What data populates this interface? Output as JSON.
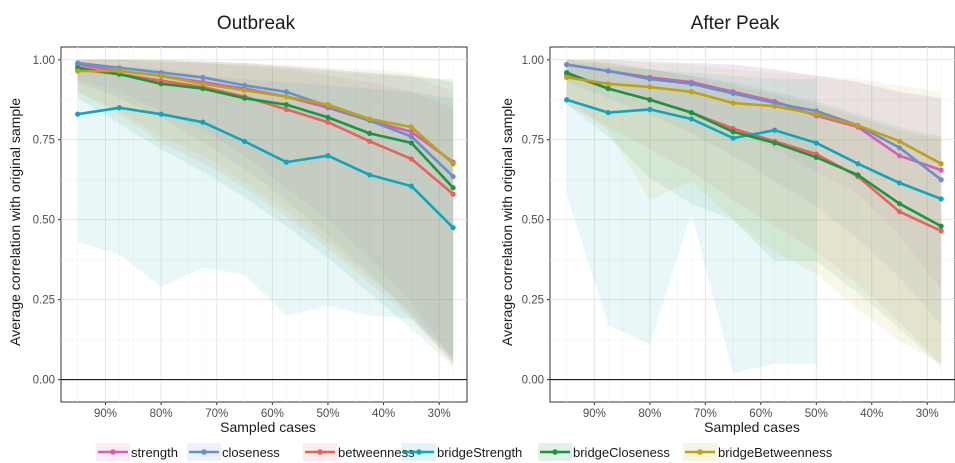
{
  "chart_data": [
    {
      "type": "line",
      "title": "Outbreak",
      "xlabel": "Sampled cases",
      "ylabel": "Average correlation with original sample",
      "x_tick_labels": [
        "90%",
        "80%",
        "70%",
        "60%",
        "50%",
        "40%",
        "30%"
      ],
      "x_tick_values": [
        90,
        80,
        70,
        60,
        50,
        40,
        30
      ],
      "x": [
        95,
        87.5,
        80,
        72.5,
        65,
        57.5,
        50,
        42.5,
        35,
        27.5
      ],
      "xlim": [
        25,
        98
      ],
      "x_reversed": true,
      "y_ticks": [
        0.0,
        0.25,
        0.5,
        0.75,
        1.0
      ],
      "y_tick_labels": [
        "0.00",
        "0.25",
        "0.50",
        "0.75",
        "1.00"
      ],
      "ylim": [
        -0.07,
        1.04
      ],
      "reference_line_y": 0,
      "grid": true,
      "series": [
        {
          "name": "strength",
          "color": "#D35FB7",
          "values": [
            0.985,
            0.965,
            0.95,
            0.93,
            0.91,
            0.885,
            0.85,
            0.81,
            0.775,
            0.68
          ],
          "lower": [
            0.94,
            0.9,
            0.84,
            0.78,
            0.7,
            0.6,
            0.5,
            0.38,
            0.24,
            0.06
          ],
          "upper": [
            1.0,
            1.0,
            1.0,
            0.995,
            0.99,
            0.98,
            0.97,
            0.96,
            0.95,
            0.9
          ]
        },
        {
          "name": "closeness",
          "color": "#6A8FCC",
          "values": [
            0.99,
            0.975,
            0.96,
            0.945,
            0.92,
            0.9,
            0.855,
            0.81,
            0.76,
            0.635
          ],
          "lower": [
            0.93,
            0.88,
            0.82,
            0.74,
            0.66,
            0.56,
            0.45,
            0.33,
            0.2,
            0.05
          ],
          "upper": [
            1.0,
            1.0,
            1.0,
            0.995,
            0.99,
            0.98,
            0.97,
            0.96,
            0.95,
            0.93
          ]
        },
        {
          "name": "betweenness",
          "color": "#E8615A",
          "values": [
            0.97,
            0.955,
            0.935,
            0.915,
            0.885,
            0.845,
            0.805,
            0.745,
            0.69,
            0.58
          ],
          "lower": [
            0.9,
            0.83,
            0.74,
            0.68,
            0.6,
            0.51,
            0.41,
            0.3,
            0.19,
            0.05
          ],
          "upper": [
            1.0,
            1.0,
            0.995,
            0.99,
            0.98,
            0.97,
            0.95,
            0.93,
            0.9,
            0.85
          ]
        },
        {
          "name": "bridgeStrength",
          "color": "#10A5BE",
          "values": [
            0.83,
            0.85,
            0.83,
            0.805,
            0.745,
            0.68,
            0.7,
            0.64,
            0.605,
            0.475
          ],
          "lower": [
            0.43,
            0.39,
            0.29,
            0.35,
            0.33,
            0.2,
            0.23,
            0.2,
            0.19,
            0.07
          ],
          "upper": [
            0.99,
            0.98,
            0.97,
            0.95,
            0.94,
            0.93,
            0.92,
            0.91,
            0.9,
            0.88
          ]
        },
        {
          "name": "bridgeCloseness",
          "color": "#1A9641",
          "values": [
            0.975,
            0.955,
            0.925,
            0.91,
            0.88,
            0.86,
            0.82,
            0.77,
            0.74,
            0.6
          ],
          "lower": [
            0.88,
            0.8,
            0.72,
            0.65,
            0.57,
            0.48,
            0.38,
            0.27,
            0.16,
            0.04
          ],
          "upper": [
            1.0,
            1.0,
            0.995,
            0.99,
            0.985,
            0.975,
            0.965,
            0.955,
            0.945,
            0.94
          ]
        },
        {
          "name": "bridgeBetweenness",
          "color": "#BFA114",
          "values": [
            0.965,
            0.965,
            0.95,
            0.925,
            0.905,
            0.885,
            0.86,
            0.815,
            0.79,
            0.675
          ],
          "lower": [
            0.9,
            0.84,
            0.76,
            0.7,
            0.62,
            0.53,
            0.43,
            0.32,
            0.21,
            0.06
          ],
          "upper": [
            1.0,
            1.0,
            1.0,
            0.995,
            0.99,
            0.985,
            0.975,
            0.97,
            0.96,
            0.93
          ]
        }
      ]
    },
    {
      "type": "line",
      "title": "After Peak",
      "xlabel": "Sampled cases",
      "ylabel": "Average correlation with original sample",
      "x_tick_labels": [
        "90%",
        "80%",
        "70%",
        "60%",
        "50%",
        "40%",
        "30%"
      ],
      "x_tick_values": [
        90,
        80,
        70,
        60,
        50,
        40,
        30
      ],
      "x": [
        95,
        87.5,
        80,
        72.5,
        65,
        57.5,
        50,
        42.5,
        35,
        27.5
      ],
      "xlim": [
        25,
        98
      ],
      "x_reversed": true,
      "y_ticks": [
        0.0,
        0.25,
        0.5,
        0.75,
        1.0
      ],
      "y_tick_labels": [
        "0.00",
        "0.25",
        "0.50",
        "0.75",
        "1.00"
      ],
      "ylim": [
        -0.07,
        1.04
      ],
      "reference_line_y": 0,
      "grid": true,
      "series": [
        {
          "name": "strength",
          "color": "#D35FB7",
          "values": [
            0.985,
            0.965,
            0.945,
            0.93,
            0.9,
            0.87,
            0.825,
            0.79,
            0.7,
            0.655
          ],
          "lower": [
            0.95,
            0.92,
            0.88,
            0.84,
            0.78,
            0.72,
            0.65,
            0.58,
            0.45,
            0.28
          ],
          "upper": [
            1.0,
            1.0,
            0.995,
            0.99,
            0.985,
            0.97,
            0.95,
            0.93,
            0.9,
            0.88
          ]
        },
        {
          "name": "closeness",
          "color": "#6A8FCC",
          "values": [
            0.985,
            0.965,
            0.94,
            0.925,
            0.895,
            0.865,
            0.84,
            0.795,
            0.725,
            0.625
          ],
          "lower": [
            0.93,
            0.88,
            0.83,
            0.77,
            0.7,
            0.62,
            0.54,
            0.44,
            0.32,
            0.17
          ],
          "upper": [
            1.0,
            1.0,
            0.995,
            0.99,
            0.985,
            0.97,
            0.95,
            0.93,
            0.9,
            0.88
          ]
        },
        {
          "name": "betweenness",
          "color": "#E8615A",
          "values": [
            0.955,
            0.91,
            0.875,
            0.835,
            0.785,
            0.745,
            0.705,
            0.635,
            0.525,
            0.465
          ],
          "lower": [
            0.86,
            0.79,
            0.72,
            0.65,
            0.56,
            0.48,
            0.4,
            0.3,
            0.18,
            0.05
          ],
          "upper": [
            1.0,
            0.99,
            0.97,
            0.95,
            0.92,
            0.89,
            0.86,
            0.82,
            0.78,
            0.75
          ]
        },
        {
          "name": "bridgeStrength",
          "color": "#10A5BE",
          "values": [
            0.875,
            0.835,
            0.845,
            0.815,
            0.755,
            0.78,
            0.74,
            0.675,
            0.615,
            0.565
          ],
          "lower": [
            0.58,
            0.17,
            0.11,
            0.52,
            0.02,
            0.05,
            0.05,
            null,
            null,
            null
          ],
          "upper": [
            0.99,
            0.98,
            0.97,
            0.96,
            0.95,
            0.94,
            0.94,
            null,
            null,
            null
          ]
        },
        {
          "name": "bridgeCloseness",
          "color": "#1A9641",
          "values": [
            0.96,
            0.91,
            0.875,
            0.835,
            0.775,
            0.74,
            0.695,
            0.64,
            0.55,
            0.48
          ],
          "lower": [
            0.86,
            0.76,
            0.63,
            0.55,
            0.5,
            0.37,
            0.37,
            0.27,
            0.16,
            0.04
          ],
          "upper": [
            1.0,
            0.99,
            0.97,
            0.95,
            0.93,
            0.9,
            0.87,
            0.83,
            0.79,
            0.76
          ]
        },
        {
          "name": "bridgeBetweenness",
          "color": "#BFA114",
          "values": [
            0.945,
            0.925,
            0.915,
            0.9,
            0.865,
            0.855,
            0.83,
            0.795,
            0.745,
            0.675
          ],
          "lower": [
            0.88,
            0.78,
            0.56,
            0.62,
            0.5,
            0.4,
            0.33,
            0.22,
            0.12,
            0.05
          ],
          "upper": [
            1.0,
            1.0,
            0.99,
            0.985,
            0.97,
            0.96,
            0.95,
            0.94,
            0.92,
            0.9
          ]
        }
      ]
    }
  ],
  "legend": {
    "position": "bottom",
    "entries": [
      "strength",
      "closeness",
      "betweenness",
      "bridgeStrength",
      "bridgeCloseness",
      "bridgeBetweenness"
    ]
  }
}
